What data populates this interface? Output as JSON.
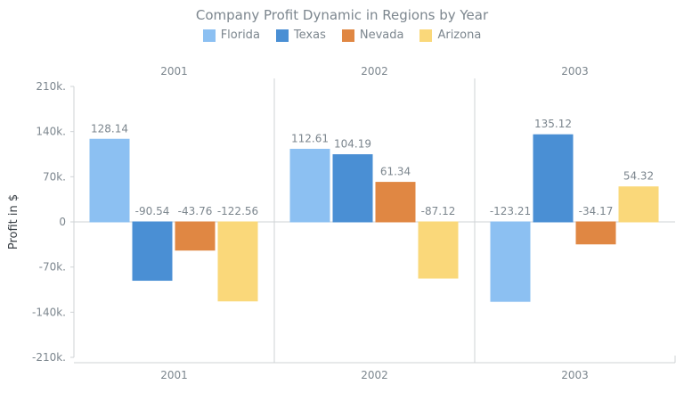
{
  "chart_data": {
    "type": "bar",
    "title": "Company Profit Dynamic in Regions by Year",
    "ylabel": "Profit in $",
    "xlabel": "",
    "categories": [
      "2001",
      "2002",
      "2003"
    ],
    "series": [
      {
        "name": "Florida",
        "color": "#8cc0f2",
        "values": [
          128.14,
          112.61,
          -123.21
        ],
        "labels": [
          "128.14",
          "112.61",
          "-123.21"
        ]
      },
      {
        "name": "Texas",
        "color": "#4a8fd4",
        "values": [
          -90.54,
          104.19,
          135.12
        ],
        "labels": [
          "-90.54",
          "104.19",
          "135.12"
        ]
      },
      {
        "name": "Nevada",
        "color": "#e08743",
        "values": [
          -43.76,
          61.34,
          -34.17
        ],
        "labels": [
          "-43.76",
          "61.34",
          "-34.17"
        ]
      },
      {
        "name": "Arizona",
        "color": "#fad87a",
        "values": [
          -122.56,
          -87.12,
          54.32
        ],
        "labels": [
          "-122.56",
          "-87.12",
          "54.32"
        ]
      }
    ],
    "yticks": [
      210,
      140,
      70,
      0,
      -70,
      -140,
      -210
    ],
    "ytick_labels": [
      "210k.",
      "140k.",
      "70k.",
      "0",
      "-70k.",
      "-140k.",
      "-210k."
    ],
    "ylim": [
      -210,
      210
    ],
    "legend": "top-center",
    "grid": false
  }
}
